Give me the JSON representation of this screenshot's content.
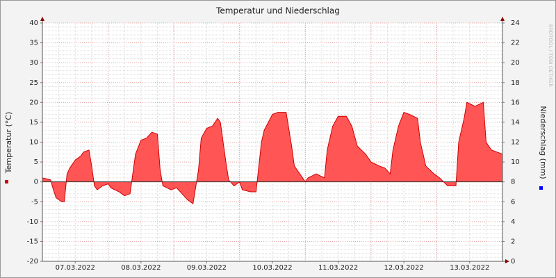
{
  "chart_data": {
    "type": "area",
    "title": "Temperatur und Niederschlag",
    "ylabel": "Temperatur (°C)",
    "y2label": "Niederschlag (mm)",
    "watermark": "RRDTOOL / TOBI OETIKER",
    "x": [
      0,
      3,
      4,
      5,
      7,
      8,
      9,
      10,
      12,
      14,
      15,
      17,
      18,
      19,
      20,
      22,
      24,
      25,
      28,
      30,
      32,
      33,
      34,
      36,
      38,
      40,
      42,
      43,
      44,
      47,
      49,
      51,
      53,
      55,
      57,
      58,
      60,
      62,
      64,
      65,
      67,
      68,
      70,
      72,
      73,
      76,
      78,
      80,
      81,
      84,
      86,
      89,
      91,
      92,
      94,
      96,
      97,
      100,
      103,
      104,
      106,
      108,
      111,
      113,
      115,
      118,
      120,
      123,
      125,
      127,
      128,
      130,
      132,
      134,
      137,
      138,
      140,
      143,
      145,
      148,
      151,
      152,
      154,
      155,
      158,
      161,
      162,
      164,
      166,
      168
    ],
    "series": [
      {
        "name": "Temperatur",
        "color": "#ff5555",
        "line_color": "#cc0000",
        "values": [
          1,
          0.5,
          -2,
          -4,
          -5,
          -5,
          2,
          3.5,
          5.5,
          6.5,
          7.5,
          8,
          4,
          -1,
          -2,
          -1,
          -0.5,
          -1.5,
          -2.5,
          -3.5,
          -3,
          2,
          7,
          10.5,
          11,
          12.5,
          12,
          3,
          -1,
          -2,
          -1.5,
          -3,
          -4.5,
          -5.5,
          3,
          11,
          13.5,
          14,
          16,
          15,
          5,
          0.5,
          -1,
          0,
          -2,
          -2.5,
          -2.5,
          10,
          13,
          17,
          17.5,
          17.5,
          9,
          4,
          2,
          0,
          1,
          2,
          1,
          8,
          14,
          16.5,
          16.5,
          14,
          9,
          7,
          5,
          4,
          3.5,
          2,
          8,
          14,
          17.5,
          17,
          16,
          10,
          4,
          2,
          1,
          -1,
          -1,
          10,
          16,
          20,
          19,
          20,
          10,
          8,
          7.5,
          7
        ]
      }
    ],
    "y2_color": "#0000ff",
    "xlim": [
      0,
      168
    ],
    "xticks": [
      {
        "value": 12,
        "label": "07.03.2022"
      },
      {
        "value": 36,
        "label": "08.03.2022"
      },
      {
        "value": 60,
        "label": "09.03.2022"
      },
      {
        "value": 84,
        "label": "10.03.2022"
      },
      {
        "value": 108,
        "label": "11.03.2022"
      },
      {
        "value": 132,
        "label": "12.03.2022"
      },
      {
        "value": 156,
        "label": "13.03.2022"
      }
    ],
    "ylim": [
      -20,
      40
    ],
    "yticks": [
      -20,
      -15,
      -10,
      -5,
      0,
      5,
      10,
      15,
      20,
      25,
      30,
      35,
      40
    ],
    "y2lim": [
      0,
      24
    ],
    "y2ticks": [
      0,
      2,
      4,
      6,
      8,
      10,
      12,
      14,
      16,
      18,
      20,
      22,
      24
    ],
    "grid": true
  }
}
